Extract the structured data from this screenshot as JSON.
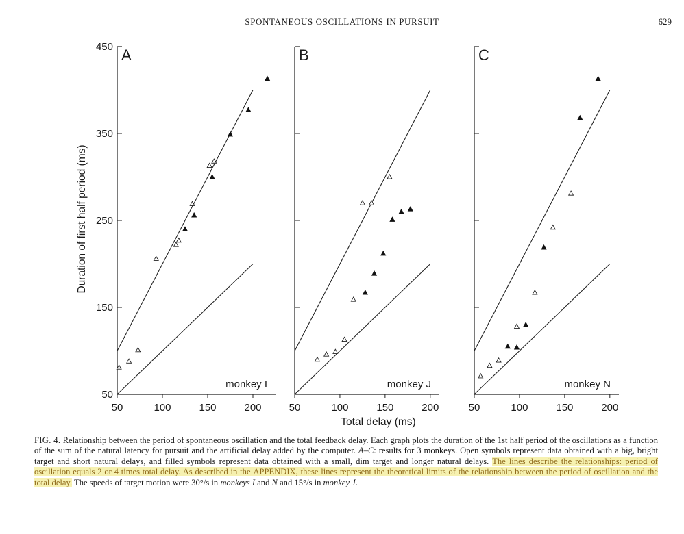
{
  "running_head": "SPONTANEOUS OSCILLATIONS IN PURSUIT",
  "page_number": "629",
  "chart_data": {
    "type": "scatter",
    "xlabel": "Total delay (ms)",
    "ylabel": "Duration of first half period (ms)",
    "ylim": [
      50,
      450
    ],
    "yticks": [
      "50",
      "150",
      "250",
      "350",
      "450"
    ],
    "reference_lines": [
      {
        "label": "2x total delay",
        "points": [
          [
            50,
            100
          ],
          [
            200,
            400
          ]
        ]
      },
      {
        "label": "1x total delay",
        "points": [
          [
            50,
            50
          ],
          [
            200,
            200
          ]
        ]
      }
    ],
    "panels": [
      {
        "letter": "A",
        "label": "monkey I",
        "xlim": [
          50,
          225
        ],
        "xticks": [
          "50",
          "100",
          "150",
          "200"
        ],
        "open": [
          [
            52,
            81
          ],
          [
            63,
            88
          ],
          [
            73,
            101
          ],
          [
            93,
            206
          ],
          [
            115,
            222
          ],
          [
            118,
            227
          ],
          [
            133,
            269
          ],
          [
            152,
            313
          ],
          [
            157,
            318
          ]
        ],
        "filled": [
          [
            125,
            240
          ],
          [
            135,
            256
          ],
          [
            155,
            300
          ],
          [
            175,
            349
          ],
          [
            195,
            377
          ],
          [
            216,
            413
          ]
        ]
      },
      {
        "letter": "B",
        "label": "monkey J",
        "xlim": [
          50,
          210
        ],
        "xticks": [
          "50",
          "100",
          "150",
          "200"
        ],
        "open": [
          [
            75,
            90
          ],
          [
            85,
            96
          ],
          [
            95,
            99
          ],
          [
            105,
            113
          ],
          [
            115,
            159
          ],
          [
            125,
            270
          ],
          [
            135,
            270
          ],
          [
            155,
            300
          ]
        ],
        "filled": [
          [
            128,
            167
          ],
          [
            138,
            189
          ],
          [
            148,
            212
          ],
          [
            158,
            251
          ],
          [
            168,
            260
          ],
          [
            178,
            263
          ]
        ]
      },
      {
        "letter": "C",
        "label": "monkey N",
        "xlim": [
          50,
          210
        ],
        "xticks": [
          "50",
          "100",
          "150",
          "200"
        ],
        "open": [
          [
            57,
            71
          ],
          [
            67,
            83
          ],
          [
            77,
            89
          ],
          [
            97,
            128
          ],
          [
            117,
            167
          ],
          [
            137,
            242
          ],
          [
            157,
            281
          ]
        ],
        "filled": [
          [
            87,
            105
          ],
          [
            97,
            104
          ],
          [
            107,
            130
          ],
          [
            127,
            219
          ],
          [
            167,
            368
          ],
          [
            187,
            413
          ]
        ]
      }
    ]
  },
  "caption": {
    "fig_label": "FIG. 4.",
    "part1": " Relationship between the period of spontaneous oscillation and the total feedback delay. Each graph plots the duration of the 1st half period of the oscillations as a function of the sum of the natural latency for pursuit and the artificial delay added by the computer. ",
    "panel_ref": "A–C",
    "part2": ": results for 3 monkeys. Open symbols represent data obtained with a big, bright target and short natural delays, and filled symbols represent data obtained with a small, dim target and longer natural delays. ",
    "highlight1": "The lines describe the relationships: period of oscillation equals 2 or 4 times total delay. As described in the ",
    "appendix": "APPENDIX",
    "highlight2": ", these lines represent the theoretical limits of the relationship between the period of oscillation and the total delay.",
    "part3": " The speeds of target motion were 30°/s in ",
    "monkeys_in": "monkeys I",
    "and_word": " and ",
    "monkey_n": "N",
    "part4": " and 15°/s in ",
    "monkey_j": "monkey J",
    "end": "."
  }
}
